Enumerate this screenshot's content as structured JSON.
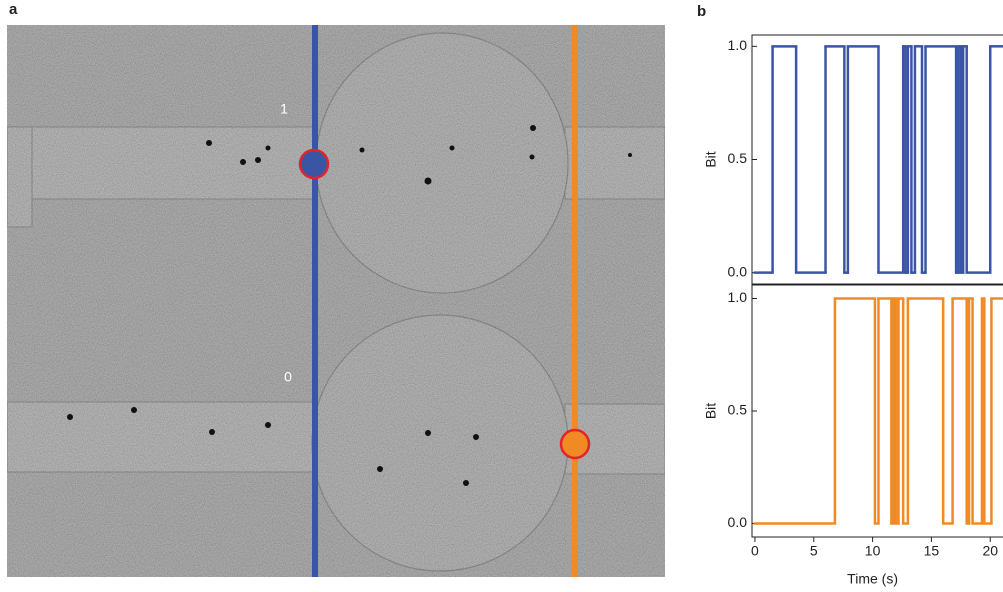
{
  "panel_labels": [
    "a",
    "b"
  ],
  "image": {
    "labels": [
      "1",
      "0"
    ]
  },
  "chart_data": [
    {
      "type": "step",
      "ylabel": "Bit",
      "x": [
        0,
        1.5,
        3.5,
        6.0,
        7.6,
        7.9,
        10.5,
        12.6,
        12.8,
        13.0,
        13.3,
        13.6,
        14.2,
        14.5,
        17.1,
        17.3,
        17.5,
        17.7,
        18.0,
        20.0
      ],
      "series": [
        {
          "color": "#3a55a4",
          "values": [
            0,
            1,
            0,
            1,
            0,
            1,
            0,
            1,
            0,
            1,
            0,
            1,
            0,
            1,
            0,
            1,
            0,
            1,
            0,
            1
          ]
        }
      ],
      "xlim": [
        -0.25,
        21
      ],
      "ylim": [
        -0.05,
        1.05
      ],
      "yticks": [
        {
          "value": 0,
          "label": "0.0"
        },
        {
          "value": 0.5,
          "label": "0.5"
        },
        {
          "value": 1,
          "label": "1.0"
        }
      ]
    },
    {
      "type": "step",
      "ylabel": "Bit",
      "xlabel": "Time (s)",
      "x": [
        0,
        6.8,
        10.2,
        10.5,
        11.6,
        11.8,
        12.0,
        12.2,
        12.6,
        13.0,
        16.0,
        16.8,
        18.0,
        18.2,
        18.5,
        19.3,
        19.5,
        20.1
      ],
      "series": [
        {
          "color": "#f08a24",
          "values": [
            0,
            1,
            0,
            1,
            0,
            1,
            0,
            1,
            0,
            1,
            0,
            1,
            0,
            1,
            0,
            1,
            0,
            1
          ]
        }
      ],
      "xlim": [
        -0.25,
        21
      ],
      "ylim": [
        -0.06,
        1.06
      ],
      "xticks": [
        0,
        5,
        10,
        15,
        20
      ],
      "yticks": [
        {
          "value": 0,
          "label": "0.0"
        },
        {
          "value": 0.5,
          "label": "0.5"
        },
        {
          "value": 1,
          "label": "1.0"
        }
      ]
    }
  ]
}
